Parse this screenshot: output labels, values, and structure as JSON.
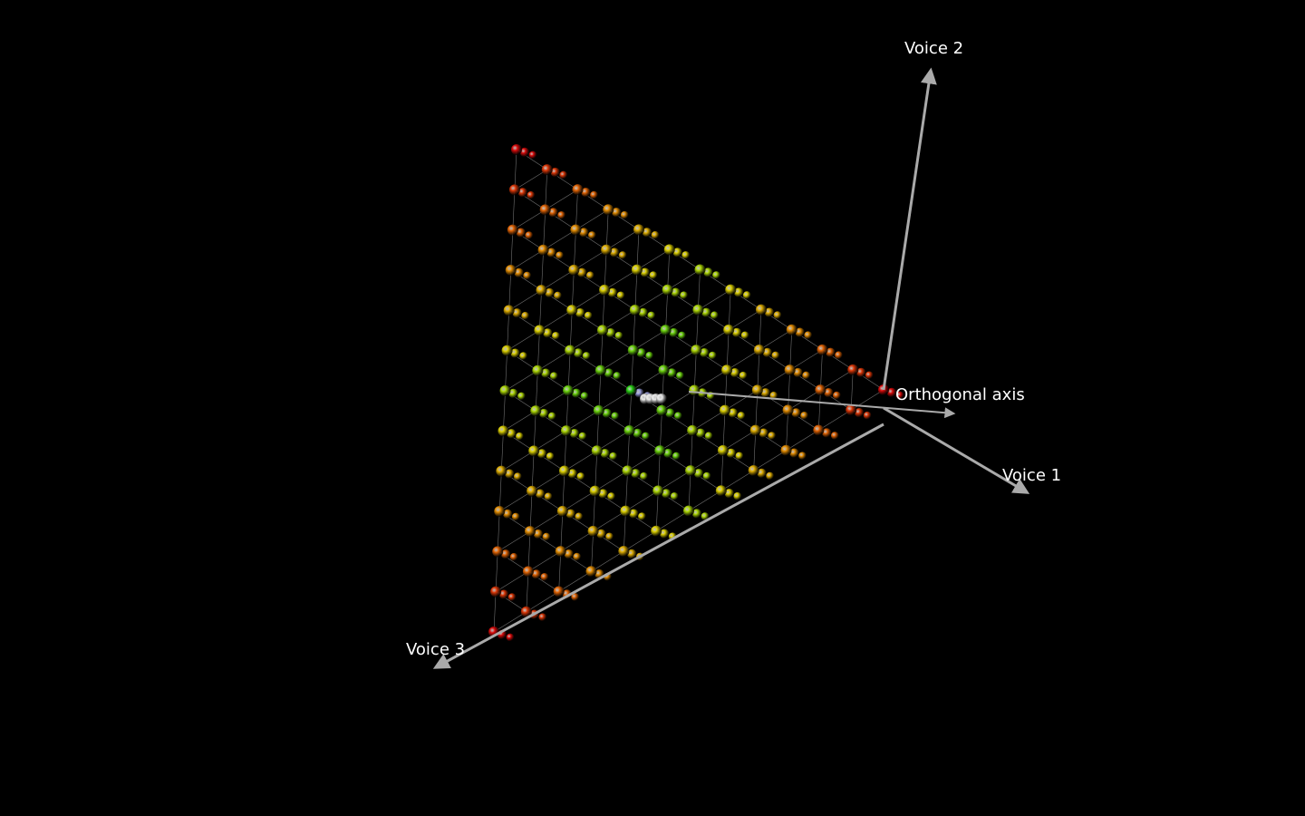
{
  "axes": {
    "voice_2": "Voice 2",
    "orthogonal": "Orthogonal axis",
    "voice_1": "Voice 1",
    "voice_3": "Voice 3"
  }
}
